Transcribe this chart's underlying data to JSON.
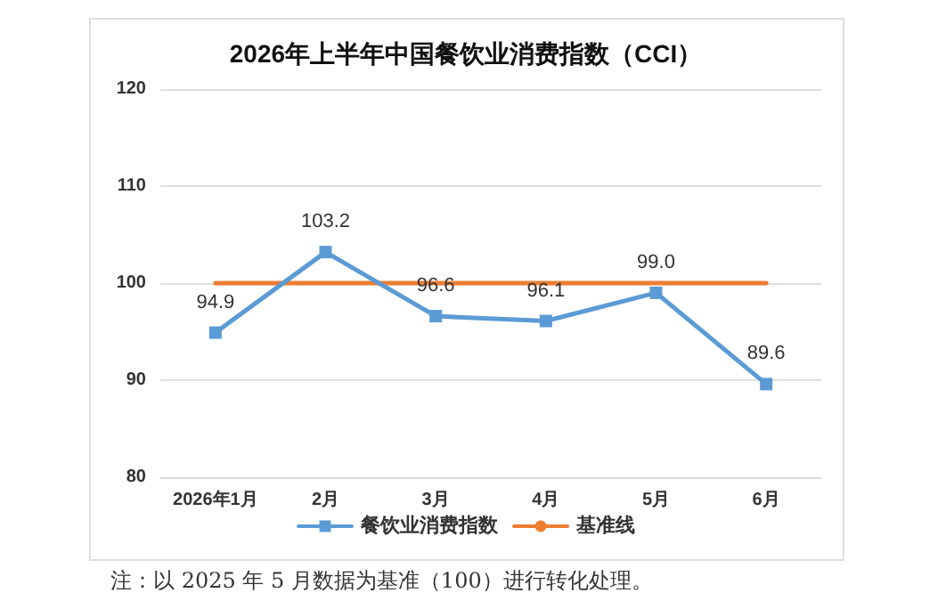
{
  "chart_data": {
    "type": "line",
    "title": "2026年上半年中国餐饮业消费指数（CCI）",
    "categories": [
      "2026年1月",
      "2月",
      "3月",
      "4月",
      "5月",
      "6月"
    ],
    "series": [
      {
        "name": "餐饮业消费指数",
        "color": "#5b9bd5",
        "marker": "square",
        "values": [
          94.9,
          103.2,
          96.6,
          96.1,
          99.0,
          89.6
        ],
        "value_labels": [
          "94.9",
          "103.2",
          "96.6",
          "96.1",
          "99.0",
          "89.6"
        ]
      },
      {
        "name": "基准线",
        "color": "#ed7d31",
        "marker": "none",
        "values": [
          100,
          100,
          100,
          100,
          100,
          100
        ]
      }
    ],
    "ylim": [
      80,
      120
    ],
    "yticks": [
      80,
      90,
      100,
      110,
      120
    ],
    "grid": "y",
    "legend": "bottom",
    "annotations": [
      "注：以 2025 年 5 月数据为基准（100）进行转化处理。"
    ]
  }
}
